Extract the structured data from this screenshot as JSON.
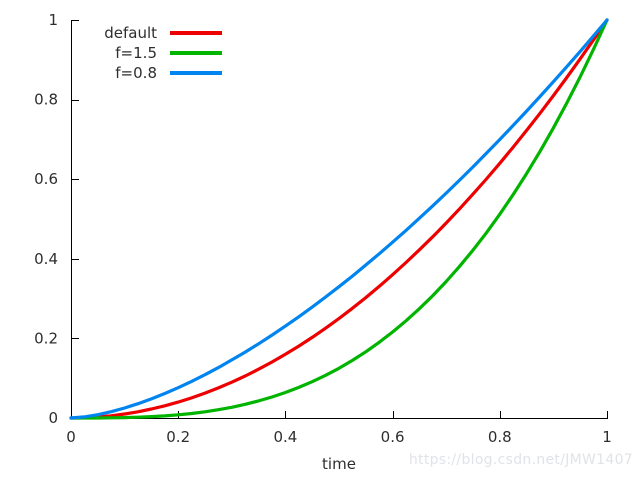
{
  "watermark": {
    "text": "https://blog.csdn.net/JMW1407",
    "color": "#e0e3e8"
  },
  "chart_data": {
    "type": "line",
    "title": "",
    "xlabel": "time",
    "ylabel": "",
    "xlim": [
      0,
      1
    ],
    "ylim": [
      0,
      1
    ],
    "grid": false,
    "legend_position": "top-left-inside",
    "axis_color": "#000000",
    "tick_label_color": "#2e2e2e",
    "x_tick_values": [
      0,
      0.2,
      0.4,
      0.6,
      0.8,
      1
    ],
    "x_ticks": [
      "0",
      "0.2",
      "0.4",
      "0.6",
      "0.8",
      "1"
    ],
    "y_tick_values": [
      0,
      0.2,
      0.4,
      0.6,
      0.8,
      1
    ],
    "y_ticks": [
      "0",
      "0.2",
      "0.4",
      "0.6",
      "0.8",
      "1"
    ],
    "x": [
      0,
      0.025,
      0.05,
      0.075,
      0.1,
      0.125,
      0.15,
      0.175,
      0.2,
      0.225,
      0.25,
      0.275,
      0.3,
      0.325,
      0.35,
      0.375,
      0.4,
      0.425,
      0.45,
      0.475,
      0.5,
      0.525,
      0.55,
      0.575,
      0.6,
      0.625,
      0.65,
      0.675,
      0.7,
      0.725,
      0.75,
      0.775,
      0.8,
      0.825,
      0.85,
      0.875,
      0.9,
      0.925,
      0.95,
      0.975,
      1
    ],
    "series": [
      {
        "name": "default",
        "color": "#ee0000",
        "values": [
          0,
          0.0006,
          0.0025,
          0.0056,
          0.01,
          0.0156,
          0.0225,
          0.0306,
          0.04,
          0.0506,
          0.0625,
          0.0756,
          0.09,
          0.1056,
          0.1225,
          0.1406,
          0.16,
          0.1806,
          0.2025,
          0.2256,
          0.25,
          0.2756,
          0.3025,
          0.3306,
          0.36,
          0.3906,
          0.4225,
          0.4556,
          0.49,
          0.5256,
          0.5625,
          0.6006,
          0.64,
          0.6806,
          0.7225,
          0.7656,
          0.81,
          0.8556,
          0.9025,
          0.9506,
          1
        ]
      },
      {
        "name": "f=1.5",
        "color": "#00b400",
        "values": [
          0,
          0.0,
          0.0001,
          0.0004,
          0.001,
          0.002,
          0.0034,
          0.0054,
          0.008,
          0.0114,
          0.0156,
          0.0208,
          0.027,
          0.0343,
          0.0429,
          0.0527,
          0.064,
          0.0768,
          0.0911,
          0.1072,
          0.125,
          0.1447,
          0.1664,
          0.1901,
          0.216,
          0.2441,
          0.2746,
          0.3076,
          0.343,
          0.3811,
          0.4219,
          0.4654,
          0.512,
          0.5615,
          0.6141,
          0.6699,
          0.729,
          0.7915,
          0.8574,
          0.9269,
          1
        ]
      },
      {
        "name": "f=0.8",
        "color": "#0084f0",
        "values": [
          0,
          0.0027,
          0.0083,
          0.0159,
          0.0251,
          0.0359,
          0.0481,
          0.0615,
          0.0762,
          0.092,
          0.1088,
          0.1267,
          0.1459,
          0.1657,
          0.1865,
          0.2082,
          0.2309,
          0.2543,
          0.2787,
          0.3039,
          0.3299,
          0.3566,
          0.3843,
          0.4125,
          0.4416,
          0.4714,
          0.5019,
          0.5332,
          0.5651,
          0.5978,
          0.631,
          0.6651,
          0.6998,
          0.7351,
          0.7711,
          0.8077,
          0.8449,
          0.8827,
          0.9211,
          0.9603,
          1
        ]
      }
    ]
  }
}
